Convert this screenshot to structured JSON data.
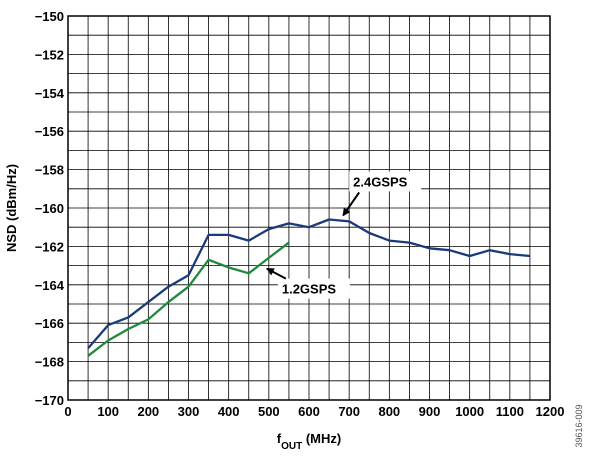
{
  "chart_data": {
    "type": "line",
    "xlabel_main": "f",
    "xlabel_sub": "OUT",
    "xlabel_rest": " (MHz)",
    "ylabel": "NSD (dBm/Hz)",
    "xlim": [
      0,
      1200
    ],
    "ylim": [
      -170,
      -150
    ],
    "x_ticks": [
      0,
      100,
      200,
      300,
      400,
      500,
      600,
      700,
      800,
      900,
      1000,
      1100,
      1200
    ],
    "y_ticks": [
      -170,
      -168,
      -166,
      -164,
      -162,
      -160,
      -158,
      -156,
      -154,
      -152,
      -150
    ],
    "x_tick_labels": [
      "0",
      "100",
      "200",
      "300",
      "400",
      "500",
      "600",
      "700",
      "800",
      "900",
      "1000",
      "1100",
      "1200"
    ],
    "y_tick_labels": [
      "−170",
      "−168",
      "−166",
      "−164",
      "−162",
      "−160",
      "−158",
      "−156",
      "−154",
      "−152",
      "−150"
    ],
    "grid": true,
    "series": [
      {
        "name": "2.4GSPS",
        "color": "#1a3a7a",
        "x": [
          50,
          100,
          150,
          200,
          250,
          300,
          350,
          400,
          450,
          500,
          550,
          600,
          650,
          700,
          750,
          800,
          850,
          900,
          950,
          1000,
          1050,
          1100,
          1150
        ],
        "y": [
          -167.3,
          -166.1,
          -165.7,
          -164.9,
          -164.1,
          -163.5,
          -161.4,
          -161.4,
          -161.7,
          -161.1,
          -160.8,
          -161.0,
          -160.6,
          -160.7,
          -161.3,
          -161.7,
          -161.8,
          -162.1,
          -162.2,
          -162.5,
          -162.2,
          -162.4,
          -162.5
        ]
      },
      {
        "name": "1.2GSPS",
        "color": "#1e8a3c",
        "x": [
          50,
          100,
          150,
          200,
          250,
          300,
          350,
          400,
          450,
          500,
          550
        ],
        "y": [
          -167.7,
          -166.9,
          -166.3,
          -165.8,
          -164.9,
          -164.1,
          -162.7,
          -163.1,
          -163.4,
          -162.6,
          -161.8
        ]
      }
    ],
    "annotations": [
      {
        "text": "2.4GSPS",
        "x": 700,
        "y": -160.7
      },
      {
        "text": "1.2GSPS",
        "x": 520,
        "y": -163.0
      }
    ]
  },
  "figure_id": "39616-009"
}
